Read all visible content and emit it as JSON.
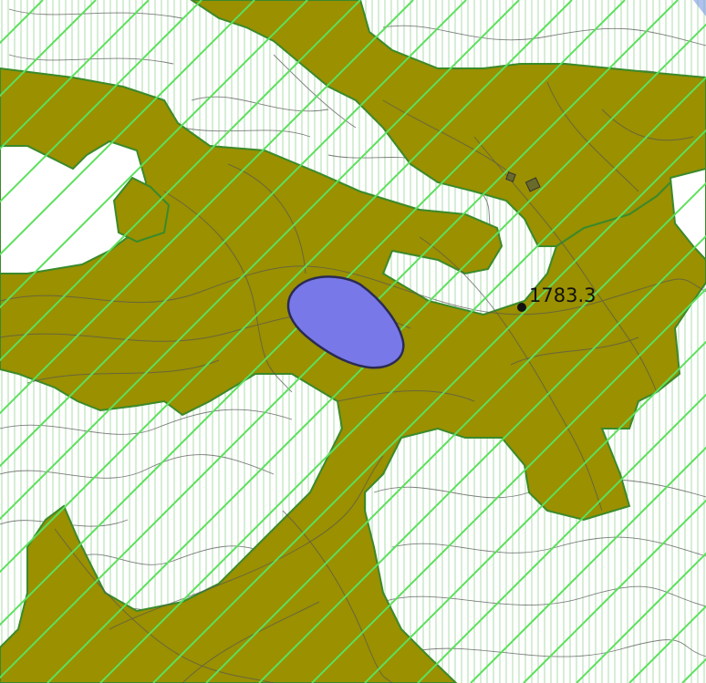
{
  "map": {
    "colors": {
      "background": "#ffffff",
      "terrain_fill": "#9a9000",
      "terrain_stroke": "#3a8a2a",
      "vertical_hatch": "#6cc06c",
      "diagonal_hatch": "#5ce05c",
      "contour_line": "#555555",
      "lake_fill": "#7878e8",
      "lake_stroke": "#2a2a55",
      "point_marker": "#111111",
      "building_fill": "#6a6a2a"
    },
    "spot_height": {
      "label": "1783.3"
    }
  }
}
